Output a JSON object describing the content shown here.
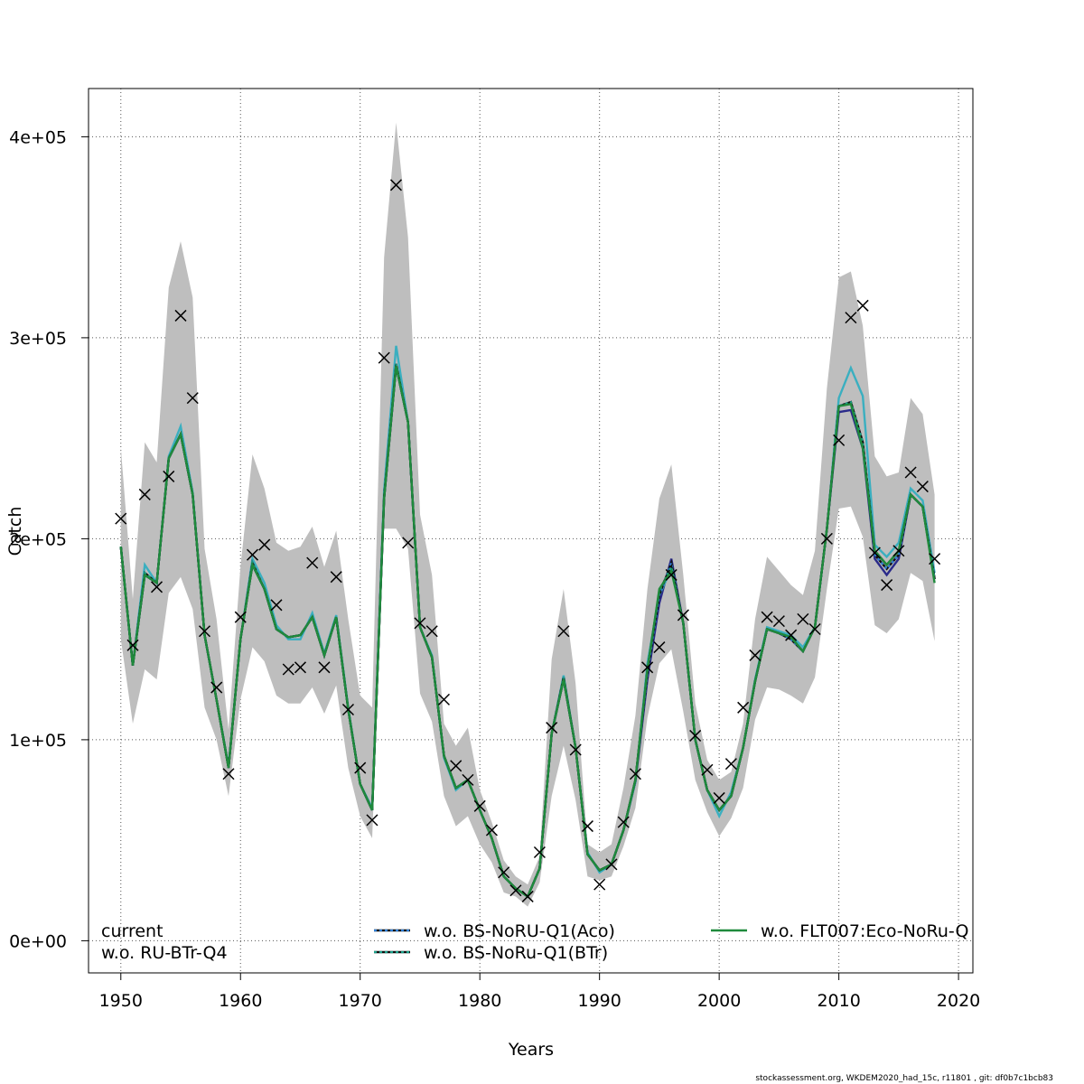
{
  "chart_data": {
    "type": "line",
    "xlabel": "Years",
    "ylabel": "Catch",
    "xlim": [
      1947.3,
      2021.2
    ],
    "ylim": [
      -16000,
      424000
    ],
    "x_ticks": [
      1950,
      1960,
      1970,
      1980,
      1990,
      2000,
      2010,
      2020
    ],
    "x_tick_labels": [
      "1950",
      "1960",
      "1970",
      "1980",
      "1990",
      "2000",
      "2010",
      "2020"
    ],
    "y_ticks": [
      0,
      100000,
      200000,
      300000,
      400000
    ],
    "y_tick_labels": [
      "0e+00",
      "1e+05",
      "2e+05",
      "3e+05",
      "4e+05"
    ],
    "grid": true,
    "legend_position": "bottom",
    "years": [
      1950,
      1951,
      1952,
      1953,
      1954,
      1955,
      1956,
      1957,
      1958,
      1959,
      1960,
      1961,
      1962,
      1963,
      1964,
      1965,
      1966,
      1967,
      1968,
      1969,
      1970,
      1971,
      1972,
      1973,
      1974,
      1975,
      1976,
      1977,
      1978,
      1979,
      1980,
      1981,
      1982,
      1983,
      1984,
      1985,
      1986,
      1987,
      1988,
      1989,
      1990,
      1991,
      1992,
      1993,
      1994,
      1995,
      1996,
      1997,
      1998,
      1999,
      2000,
      2001,
      2002,
      2003,
      2004,
      2005,
      2006,
      2007,
      2008,
      2009,
      2010,
      2011,
      2012,
      2013,
      2014,
      2015,
      2016,
      2017,
      2018
    ],
    "observed_catch": {
      "marker": "x",
      "color": "#000000",
      "values": [
        210000,
        147000,
        222000,
        176000,
        231000,
        311000,
        270000,
        154000,
        126000,
        83000,
        161000,
        192000,
        197000,
        167000,
        135000,
        136000,
        188000,
        136000,
        181000,
        115000,
        86000,
        60000,
        290000,
        376000,
        198000,
        158000,
        154000,
        120000,
        87000,
        80000,
        67000,
        55000,
        34000,
        25000,
        22000,
        44000,
        106000,
        154000,
        95000,
        57000,
        28000,
        38000,
        59000,
        83000,
        136000,
        146000,
        182000,
        162000,
        102000,
        85000,
        71000,
        88000,
        116000,
        142000,
        161000,
        159000,
        152000,
        160000,
        155000,
        200000,
        249000,
        310000,
        316000,
        193000,
        177000,
        194000,
        233000,
        226000,
        190000
      ]
    },
    "confidence_band": {
      "color": "#bebebe",
      "upper": [
        245000,
        170000,
        248000,
        238000,
        325000,
        348000,
        320000,
        195000,
        160000,
        105000,
        186000,
        242000,
        225000,
        198000,
        194000,
        196000,
        206000,
        186000,
        204000,
        160000,
        122000,
        116000,
        340000,
        407000,
        350000,
        212000,
        182000,
        108000,
        97000,
        106000,
        75000,
        59000,
        40000,
        32000,
        28000,
        42000,
        140000,
        175000,
        128000,
        48000,
        44000,
        48000,
        76000,
        112000,
        175000,
        220000,
        237000,
        182000,
        118000,
        90000,
        80000,
        84000,
        108000,
        160000,
        191000,
        184000,
        177000,
        172000,
        194000,
        275000,
        330000,
        333000,
        306000,
        241000,
        231000,
        233000,
        270000,
        262000,
        222000
      ],
      "lower": [
        150000,
        108000,
        135000,
        130000,
        173000,
        181000,
        165000,
        116000,
        100000,
        72000,
        120000,
        146000,
        139000,
        122000,
        118000,
        118000,
        126000,
        113000,
        127000,
        86000,
        62000,
        51000,
        205000,
        205000,
        195000,
        123000,
        109000,
        72000,
        57000,
        62000,
        48000,
        39000,
        24000,
        22000,
        17000,
        29000,
        72000,
        97000,
        70000,
        32000,
        30000,
        32000,
        47000,
        66000,
        111000,
        138000,
        145000,
        114000,
        80000,
        64000,
        52000,
        61000,
        76000,
        110000,
        126000,
        125000,
        122000,
        118000,
        131000,
        175000,
        215000,
        216000,
        201000,
        157000,
        153000,
        160000,
        183000,
        179000,
        149000
      ]
    },
    "series": [
      {
        "name": "current",
        "color": "#2a2a8a",
        "style": "solid",
        "values": [
          196000,
          137000,
          182000,
          178000,
          240000,
          252000,
          222000,
          152000,
          120000,
          86000,
          150000,
          187000,
          175000,
          155000,
          151000,
          152000,
          161000,
          142000,
          161000,
          115000,
          78000,
          65000,
          220000,
          286000,
          258000,
          156000,
          141000,
          92000,
          76000,
          80000,
          65000,
          51000,
          32000,
          26000,
          22000,
          36000,
          103000,
          130000,
          96000,
          43000,
          35000,
          38000,
          55000,
          79000,
          130000,
          168000,
          190000,
          158000,
          100000,
          75000,
          65000,
          72000,
          96000,
          129000,
          155000,
          153000,
          150000,
          144000,
          156000,
          205000,
          263000,
          264000,
          245000,
          190000,
          182000,
          190000,
          222000,
          216000,
          180000
        ]
      },
      {
        "name": "w.o. RU-BTr-Q4",
        "color": "#3aafc0",
        "style": "solid",
        "values": [
          196000,
          137000,
          187000,
          178000,
          241000,
          256000,
          223000,
          152000,
          120000,
          87000,
          150000,
          190000,
          178000,
          157000,
          150000,
          150000,
          163000,
          143000,
          162000,
          116000,
          78000,
          66000,
          224000,
          296000,
          258000,
          156000,
          142000,
          91000,
          75000,
          80000,
          65000,
          51000,
          32000,
          26000,
          22000,
          36000,
          103000,
          132000,
          96000,
          44000,
          34000,
          38000,
          55000,
          79000,
          138000,
          172000,
          185000,
          158000,
          100000,
          75000,
          62000,
          74000,
          96000,
          130000,
          156000,
          154000,
          152000,
          146000,
          156000,
          205000,
          270000,
          285000,
          271000,
          197000,
          191000,
          198000,
          225000,
          219000,
          183000
        ]
      },
      {
        "name": "w.o. BS-NoRU-Q1(Aco)",
        "color": "#2f7fd6",
        "style": "dashed",
        "values": [
          196000,
          137000,
          182000,
          178000,
          240000,
          252000,
          222000,
          152000,
          120000,
          86000,
          150000,
          187000,
          175000,
          155000,
          151000,
          152000,
          161000,
          142000,
          161000,
          115000,
          78000,
          65000,
          220000,
          286000,
          258000,
          156000,
          141000,
          92000,
          76000,
          80000,
          65000,
          51000,
          32000,
          26000,
          22000,
          36000,
          103000,
          130000,
          96000,
          43000,
          35000,
          38000,
          55000,
          80000,
          133000,
          172000,
          188000,
          158000,
          100000,
          75000,
          65000,
          72000,
          96000,
          129000,
          155000,
          153000,
          150000,
          144000,
          156000,
          205000,
          266000,
          268000,
          248000,
          192000,
          185000,
          192000,
          222000,
          216000,
          180000
        ]
      },
      {
        "name": "w.o. BS-NoRu-Q1(BTr)",
        "color": "#1aa08a",
        "style": "dashed",
        "values": [
          196000,
          137000,
          183000,
          178000,
          240000,
          252000,
          222000,
          152000,
          120000,
          86000,
          150000,
          188000,
          175000,
          155000,
          151000,
          152000,
          161000,
          142000,
          161000,
          115000,
          78000,
          65000,
          221000,
          287000,
          258000,
          156000,
          141000,
          92000,
          76000,
          80000,
          65000,
          51000,
          32000,
          26000,
          22000,
          36000,
          103000,
          131000,
          96000,
          43000,
          35000,
          38000,
          55000,
          80000,
          135000,
          174000,
          186000,
          158000,
          100000,
          75000,
          65000,
          72000,
          96000,
          129000,
          155000,
          153000,
          151000,
          144000,
          156000,
          205000,
          266000,
          268000,
          248000,
          194000,
          187000,
          194000,
          222000,
          216000,
          180000
        ]
      },
      {
        "name": "w.o. FLT007:Eco-NoRu-Q",
        "color": "#1f8a3c",
        "style": "solid",
        "values": [
          196000,
          137000,
          182000,
          178000,
          240000,
          252000,
          222000,
          152000,
          120000,
          86000,
          150000,
          187000,
          175000,
          155000,
          151000,
          152000,
          161000,
          142000,
          161000,
          115000,
          78000,
          65000,
          220000,
          286000,
          258000,
          156000,
          141000,
          92000,
          76000,
          80000,
          65000,
          51000,
          32000,
          26000,
          22000,
          36000,
          103000,
          130000,
          96000,
          43000,
          35000,
          38000,
          55000,
          80000,
          135000,
          175000,
          184000,
          158000,
          100000,
          75000,
          65000,
          72000,
          96000,
          129000,
          155000,
          153000,
          151000,
          144000,
          156000,
          205000,
          266000,
          267000,
          245000,
          194000,
          187000,
          194000,
          222000,
          216000,
          178000
        ]
      }
    ]
  },
  "footnote": "stockassessment.org, WKDEM2020_had_15c, r11801 , git: df0b7c1bcb83"
}
